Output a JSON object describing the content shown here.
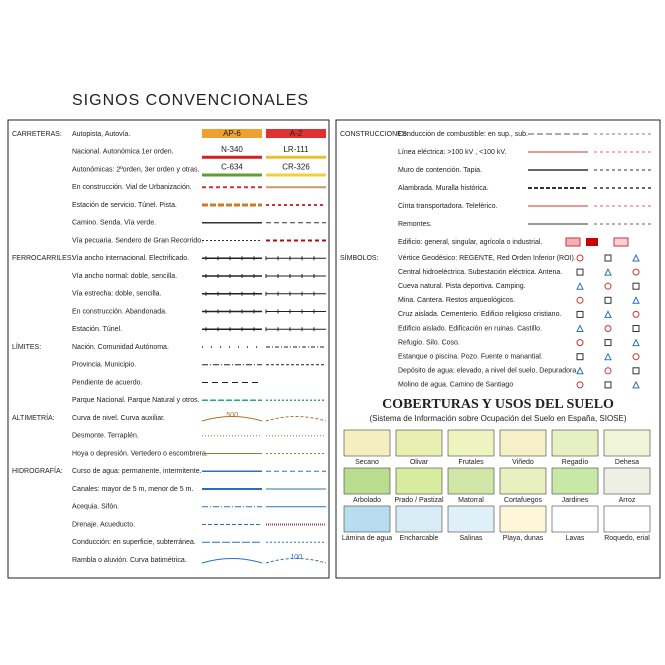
{
  "title": "SIGNOS CONVENCIONALES",
  "left": {
    "sections": [
      {
        "label": "CARRETERAS:",
        "rows": [
          {
            "text": "Autopista, Autovía.",
            "badges": [
              "AP-6",
              "A-2"
            ]
          },
          {
            "text": "Nacional. Autonómica 1er orden.",
            "badges": [
              "N-340",
              "LR-111"
            ]
          },
          {
            "text": "Autonómicas: 2ºorden, 3er orden y otras.",
            "badges": [
              "C-634",
              "CR-326"
            ]
          },
          {
            "text": "En construcción. Vial de Urbanización."
          },
          {
            "text": "Estación de servicio. Túnel. Pista."
          },
          {
            "text": "Camino. Senda. Vía verde."
          },
          {
            "text": "Vía pecuaria. Sendero de Gran Recorrido."
          }
        ]
      },
      {
        "label": "FERROCARRILES:",
        "rows": [
          {
            "text": "Vía ancho internacional. Electrificado."
          },
          {
            "text": "Vía ancho normal: doble, sencilla."
          },
          {
            "text": "Vía estrecha: doble, sencilla."
          },
          {
            "text": "En construcción. Abandonada."
          },
          {
            "text": "Estación. Túnel."
          }
        ]
      },
      {
        "label": "LÍMITES:",
        "rows": [
          {
            "text": "Nación. Comunidad Autónoma."
          },
          {
            "text": "Provincia. Municipio."
          },
          {
            "text": "Pendiente de acuerdo."
          },
          {
            "text": "Parque Nacional. Parque Natural y otros."
          }
        ]
      },
      {
        "label": "ALTIMETRÍA:",
        "rows": [
          {
            "text": "Curva de nivel. Curva auxiliar.",
            "tag": "500"
          },
          {
            "text": "Desmonte. Terraplén."
          },
          {
            "text": "Hoya o depresión. Vertedero o escombrera."
          }
        ]
      },
      {
        "label": "HIDROGRAFÍA:",
        "rows": [
          {
            "text": "Curso de agua: permanente, intermitente."
          },
          {
            "text": "Canales: mayor de 5 m, menor de 5 m."
          },
          {
            "text": "Acequia. Sifón."
          },
          {
            "text": "Drenaje. Acueducto."
          },
          {
            "text": "Conducción: en superficie, subterránea."
          },
          {
            "text": "Rambla o aluvión. Curva batimétrica.",
            "tag": "100"
          }
        ]
      }
    ]
  },
  "right": {
    "sections": [
      {
        "label": "CONSTRUCCIONES:",
        "rows": [
          "Conducción de combustible: en sup., sub.",
          "Línea eléctrica: >100 kV , <100 kV.",
          "Muro de contención. Tapia.",
          "Alambrada. Muralla histórica.",
          "Cinta transportadora. Teleférico.",
          "Remontes.",
          "Edificio: general, singular, agrícola o industrial."
        ]
      },
      {
        "label": "SÍMBOLOS:",
        "rows": [
          "Vértice Geodésico: REGENTE, Red Orden Inferior (ROI).",
          "Central hidroeléctrica. Subestación eléctrica. Antena.",
          "Cueva natural. Pista deportiva. Camping.",
          "Mina. Cantera. Restos arqueológicos.",
          "Cruz aislada. Cementerio. Edificio religioso cristiano.",
          "Edificio aislado. Edificación en ruinas. Castillo.",
          "Refugio. Silo. Coso.",
          "Estanque o piscina. Pozo. Fuente o manantial.",
          "Depósito de agua: elevado, a nivel del suelo. Depuradora.",
          "Molino de agua. Camino de Santiago"
        ]
      }
    ]
  },
  "coverage": {
    "title": "COBERTURAS Y USOS DEL SUELO",
    "subtitle": "(Sistema de Información sobre Ocupación del Suelo en España, SIOSE)",
    "tiles": [
      "Secano",
      "Olivar",
      "Frutales",
      "Viñedo",
      "Regadío",
      "Dehesa",
      "Arbolado",
      "Prado / Pastizal",
      "Matorral",
      "Cortafuegos",
      "Jardines",
      "Arroz",
      "Lámina de agua",
      "Encharcable",
      "Salinas",
      "Playa, dunas",
      "Lavas",
      "Roquedo, erial"
    ]
  }
}
